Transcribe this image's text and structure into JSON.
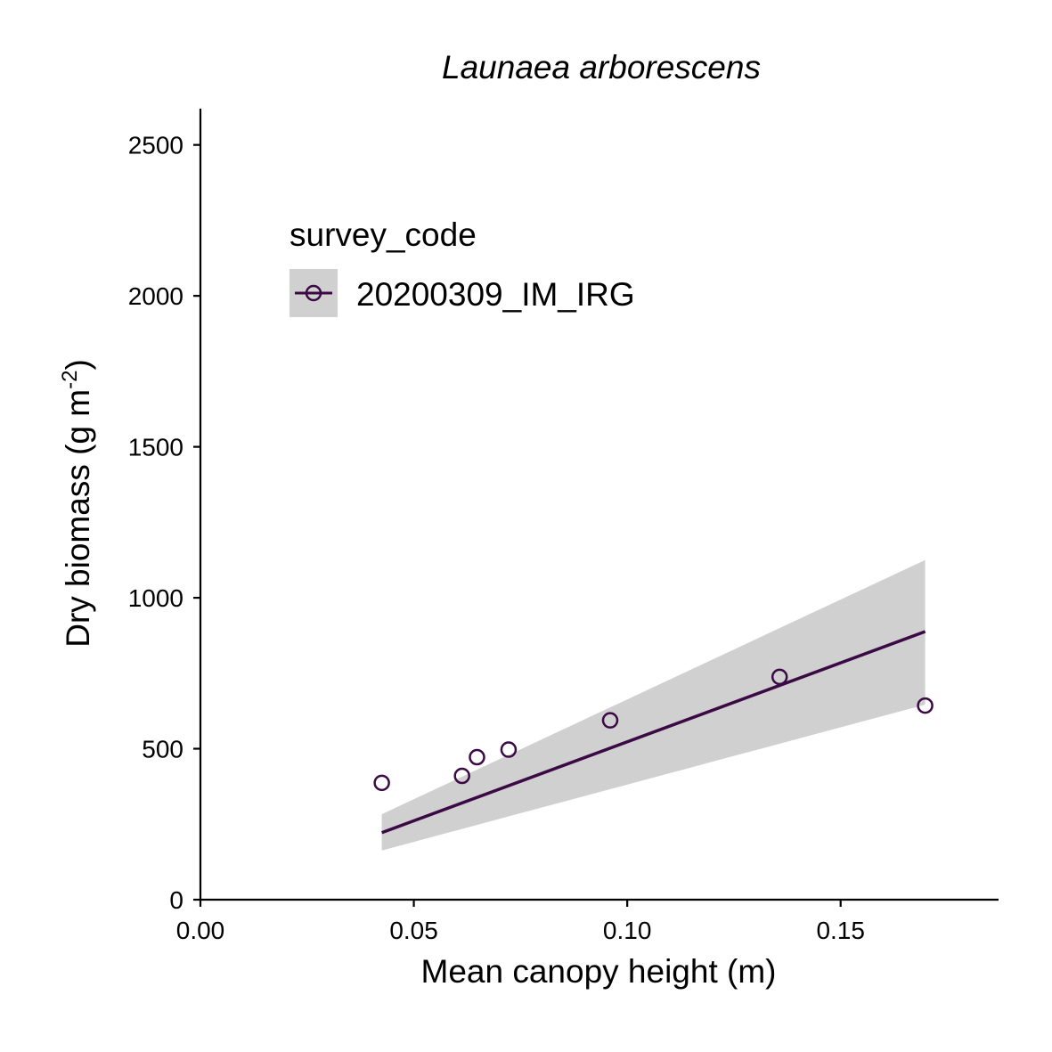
{
  "chart_data": {
    "type": "scatter",
    "title": "Launaea arborescens",
    "xlabel": "Mean canopy height (m)",
    "ylabel": {
      "text": "Dry biomass (g m",
      "superscript": "-2",
      "suffix": ")"
    },
    "xlim": [
      0,
      0.187
    ],
    "ylim": [
      0,
      2620
    ],
    "x_ticks": [
      {
        "value": 0.0,
        "label": "0.00"
      },
      {
        "value": 0.05,
        "label": "0.05"
      },
      {
        "value": 0.1,
        "label": "0.10"
      },
      {
        "value": 0.15,
        "label": "0.15"
      }
    ],
    "y_ticks": [
      {
        "value": 0,
        "label": "0"
      },
      {
        "value": 500,
        "label": "500"
      },
      {
        "value": 1000,
        "label": "1000"
      },
      {
        "value": 1500,
        "label": "1500"
      },
      {
        "value": 2000,
        "label": "2000"
      },
      {
        "value": 2500,
        "label": "2500"
      }
    ],
    "legend": {
      "title": "survey_code",
      "placement": "top-left"
    },
    "series": [
      {
        "name": "20200309_IM_IRG",
        "color": "#3b0a45",
        "points": [
          {
            "x": 0.0425,
            "y": 387
          },
          {
            "x": 0.0613,
            "y": 410
          },
          {
            "x": 0.0648,
            "y": 472
          },
          {
            "x": 0.0722,
            "y": 497
          },
          {
            "x": 0.096,
            "y": 594
          },
          {
            "x": 0.1357,
            "y": 738
          },
          {
            "x": 0.1698,
            "y": 643
          }
        ],
        "fit": {
          "x": [
            0.0425,
            0.1698
          ],
          "y": [
            222,
            888
          ],
          "ci_lower": [
            163,
            646
          ],
          "ci_upper": [
            283,
            1125
          ]
        }
      }
    ],
    "ribbon_color": "#d0d0d0",
    "grid": false
  }
}
